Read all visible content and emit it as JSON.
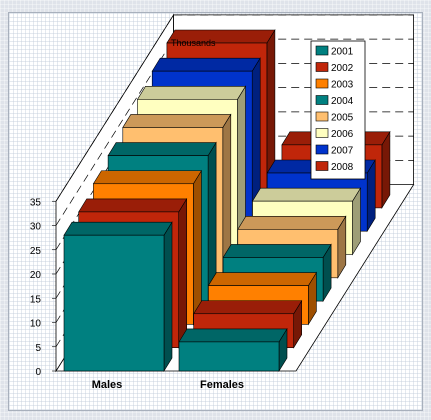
{
  "chart_data": {
    "type": "bar",
    "title": "",
    "unit_label": "Thousands",
    "xlabel": "",
    "ylabel": "",
    "categories": [
      "Males",
      "Females"
    ],
    "ylim": [
      0,
      35
    ],
    "yticks": [
      0,
      5,
      10,
      15,
      20,
      25,
      30,
      35
    ],
    "grid": true,
    "legend_position": "top-right",
    "series": [
      {
        "name": "2001",
        "color": "#008080",
        "values": [
          28,
          6
        ]
      },
      {
        "name": "2002",
        "color": "#c0260a",
        "values": [
          28,
          7
        ]
      },
      {
        "name": "2003",
        "color": "#ff8000",
        "values": [
          29,
          8
        ]
      },
      {
        "name": "2004",
        "color": "#008080",
        "values": [
          30,
          9
        ]
      },
      {
        "name": "2005",
        "color": "#ffbf6f",
        "values": [
          31,
          10
        ]
      },
      {
        "name": "2006",
        "color": "#ffffc0",
        "values": [
          32,
          11
        ]
      },
      {
        "name": "2007",
        "color": "#0033cc",
        "values": [
          33,
          12
        ]
      },
      {
        "name": "2008",
        "color": "#c0260a",
        "values": [
          34,
          13
        ]
      }
    ]
  }
}
